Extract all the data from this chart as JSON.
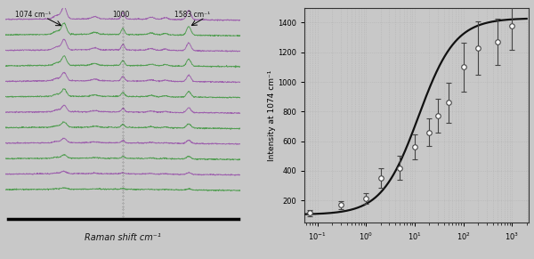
{
  "left_panel": {
    "xlabel": "Raman shift cm⁻¹",
    "annotation_1074": "1074 cm⁻¹",
    "annotation_1000": "1000",
    "annotation_1583": "1583 cm⁻¹",
    "num_spectra": 12,
    "bg_color": "#c8c8c8",
    "colors_odd": "#9955aa",
    "colors_even": "#449944"
  },
  "right_panel": {
    "ylabel": "Intensity at 1074 cm⁻¹",
    "ylim": [
      50,
      1500
    ],
    "yticks": [
      200,
      400,
      600,
      800,
      1000,
      1200,
      1400
    ],
    "x_data": [
      0.07,
      0.3,
      1.0,
      2.0,
      5.0,
      10.0,
      20.0,
      30.0,
      50.0,
      100.0,
      200.0,
      500.0,
      1000.0
    ],
    "y_data": [
      115,
      170,
      215,
      350,
      420,
      560,
      660,
      770,
      860,
      1100,
      1230,
      1270,
      1380
    ],
    "y_err": [
      20,
      28,
      35,
      65,
      80,
      85,
      95,
      115,
      135,
      165,
      180,
      155,
      165
    ],
    "marker_color": "white",
    "marker_edge_color": "#444444",
    "line_color": "#111111",
    "bg_color": "#c8c8c8",
    "fit_Imax": 1430,
    "fit_Imin": 105,
    "fit_EC50": 12,
    "fit_n": 1.15
  }
}
